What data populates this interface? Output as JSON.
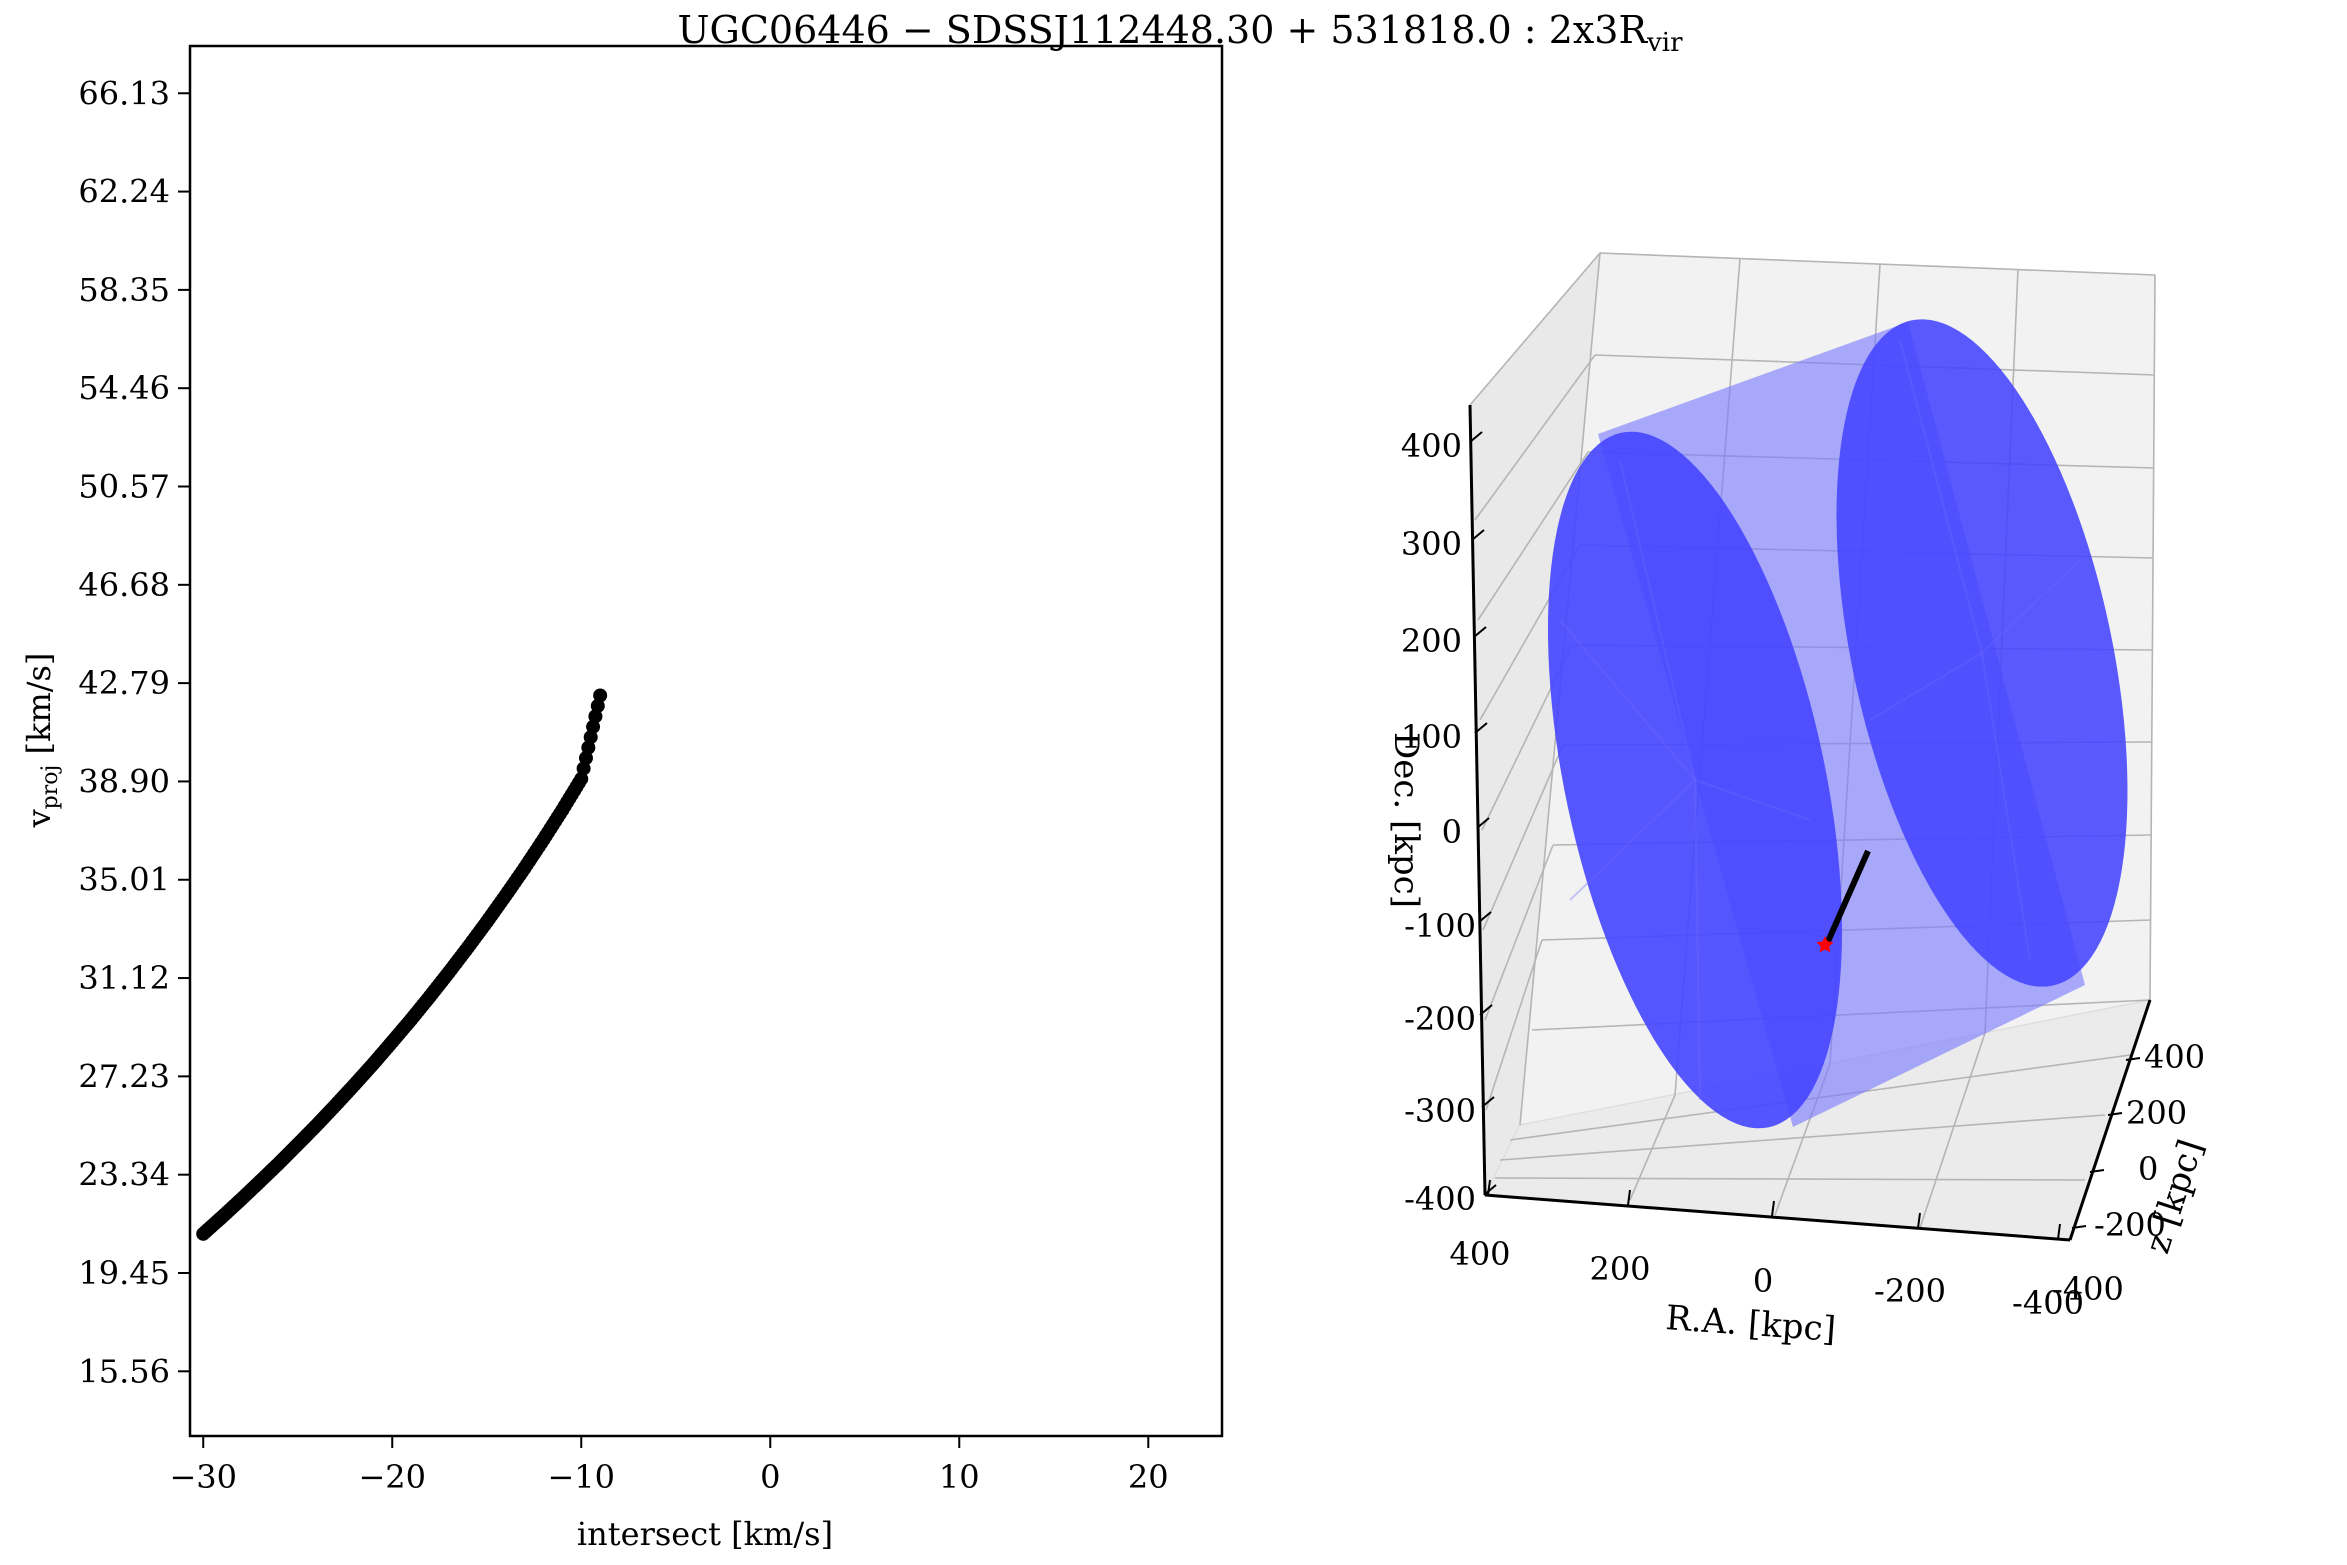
{
  "figure": {
    "title_main": "UGC06446 − SDSSJ112448.30 + 531818.0 :  2x3R",
    "title_sub": "vir"
  },
  "chart_data": [
    {
      "type": "scatter",
      "xlabel": "intersect [km/s]",
      "ylabel_main": "v",
      "ylabel_sub": "proj",
      "ylabel_unit": " [km/s]",
      "xlim": [
        -30.7,
        23.9
      ],
      "ylim": [
        13.0,
        68.0
      ],
      "xticks": [
        -30,
        -20,
        -10,
        0,
        10,
        20
      ],
      "xtick_labels": [
        "−30",
        "−20",
        "−10",
        "0",
        "10",
        "20"
      ],
      "yticks": [
        15.56,
        19.45,
        23.34,
        27.23,
        31.12,
        35.01,
        38.9,
        42.79,
        46.68,
        50.57,
        54.46,
        58.35,
        62.24,
        66.13
      ],
      "ytick_labels": [
        "15.56",
        "19.45",
        "23.34",
        "27.23",
        "31.12",
        "35.01",
        "38.90",
        "42.79",
        "46.68",
        "50.57",
        "54.46",
        "58.35",
        "62.24",
        "66.13"
      ],
      "series": [
        {
          "color": "#000000",
          "x": [
            -30.0,
            -29.0,
            -28.0,
            -27.0,
            -26.0,
            -25.0,
            -24.0,
            -23.0,
            -22.0,
            -21.0,
            -20.0,
            -19.0,
            -18.0,
            -17.0,
            -16.0,
            -15.0,
            -14.0,
            -13.0,
            -12.0,
            -11.0,
            -10.0,
            -9.0
          ],
          "y": [
            21.0,
            21.67,
            22.36,
            23.07,
            23.79,
            24.54,
            25.3,
            26.09,
            26.9,
            27.73,
            28.6,
            29.48,
            30.4,
            31.35,
            32.33,
            33.34,
            34.39,
            35.47,
            36.6,
            37.77,
            39.0,
            42.3
          ]
        }
      ]
    },
    {
      "type": "3d-surface",
      "xlabel": "R.A. [kpc]",
      "ylabel": "z [kpc]",
      "zlabel": "Dec. [kpc]",
      "xtick_labels": [
        "400",
        "200",
        "0",
        "-200",
        "-400"
      ],
      "ytick_labels": [
        "400",
        "200",
        "0",
        "-200",
        "-400"
      ],
      "ztick_labels": [
        "400",
        "300",
        "200",
        "100",
        "0",
        "-100",
        "-200",
        "-300",
        "-400"
      ],
      "surface_color": "#0000ff",
      "sightline_color": "#000000",
      "marker_color": "#ff0000",
      "marker": "star"
    }
  ]
}
